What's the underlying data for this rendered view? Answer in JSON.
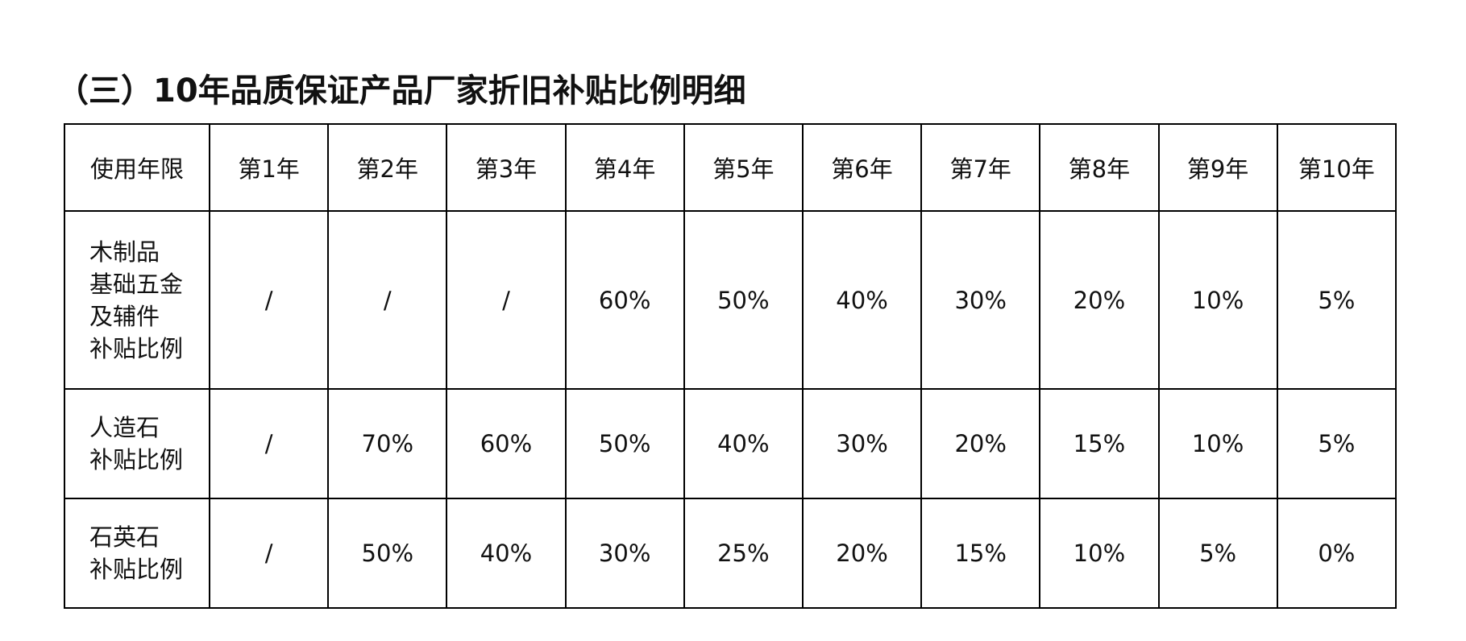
{
  "title": "（三）10年品质保证产品厂家折旧补贴比例明细",
  "table": {
    "header": [
      "使用年限",
      "第1年",
      "第2年",
      "第3年",
      "第4年",
      "第5年",
      "第6年",
      "第7年",
      "第8年",
      "第9年",
      "第10年"
    ],
    "rows": [
      {
        "label": [
          "木制品",
          "基础五金",
          "及辅件",
          "补贴比例"
        ],
        "values": [
          "/",
          "/",
          "/",
          "60%",
          "50%",
          "40%",
          "30%",
          "20%",
          "10%",
          "5%"
        ]
      },
      {
        "label": [
          "人造石",
          "补贴比例"
        ],
        "values": [
          "/",
          "70%",
          "60%",
          "50%",
          "40%",
          "30%",
          "20%",
          "15%",
          "10%",
          "5%"
        ]
      },
      {
        "label": [
          "石英石",
          "补贴比例"
        ],
        "values": [
          "/",
          "50%",
          "40%",
          "30%",
          "25%",
          "20%",
          "15%",
          "10%",
          "5%",
          "0%"
        ]
      }
    ]
  }
}
